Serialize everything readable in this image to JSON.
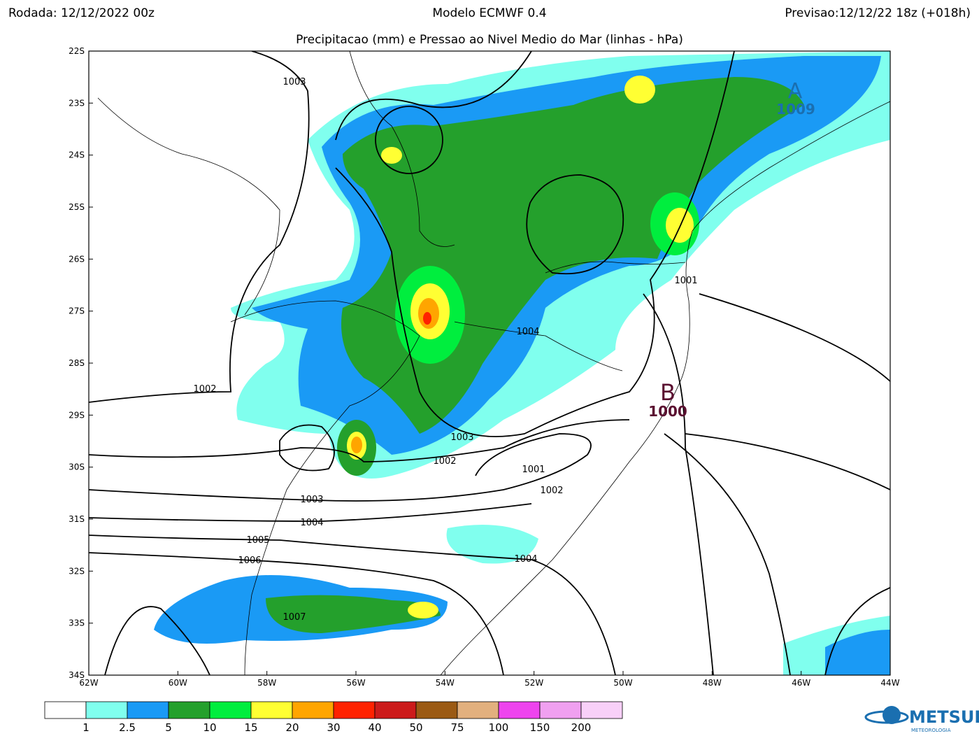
{
  "header": {
    "left": "Rodada: 12/12/2022 00z",
    "center": "Modelo ECMWF 0.4",
    "right": "Previsao:12/12/22 18z (+018h)",
    "subtitle": "Precipitacao (mm) e Pressao ao Nivel Medio do Mar (linhas - hPa)"
  },
  "map": {
    "lat_labels": [
      "22S",
      "23S",
      "24S",
      "25S",
      "26S",
      "27S",
      "28S",
      "29S",
      "30S",
      "31S",
      "32S",
      "33S",
      "34S"
    ],
    "lon_labels": [
      "62W",
      "60W",
      "58W",
      "56W",
      "54W",
      "52W",
      "50W",
      "48W",
      "46W",
      "44W"
    ],
    "isobar_labels": [
      "1003",
      "1001",
      "1004",
      "1002",
      "1003",
      "1002",
      "1001",
      "1002",
      "1003",
      "1004",
      "1005",
      "1006",
      "1004",
      "1007"
    ],
    "high": {
      "symbol": "A",
      "value": "1009"
    },
    "low": {
      "symbol": "B",
      "value": "1000"
    }
  },
  "colorbar": {
    "colors": [
      "#ffffff",
      "#80ffee",
      "#1a9af5",
      "#24a02c",
      "#00ee3e",
      "#ffff33",
      "#ffa500",
      "#ff2200",
      "#cc1b1b",
      "#9b5a14",
      "#e2b07e",
      "#ee44ee",
      "#f0a0f0",
      "#f8d0f8"
    ],
    "labels": [
      "1",
      "2.5",
      "5",
      "10",
      "15",
      "20",
      "30",
      "40",
      "50",
      "75",
      "100",
      "150",
      "200"
    ]
  },
  "logo": {
    "name": "METSUL",
    "tagline": "METEOROLOGIA"
  }
}
